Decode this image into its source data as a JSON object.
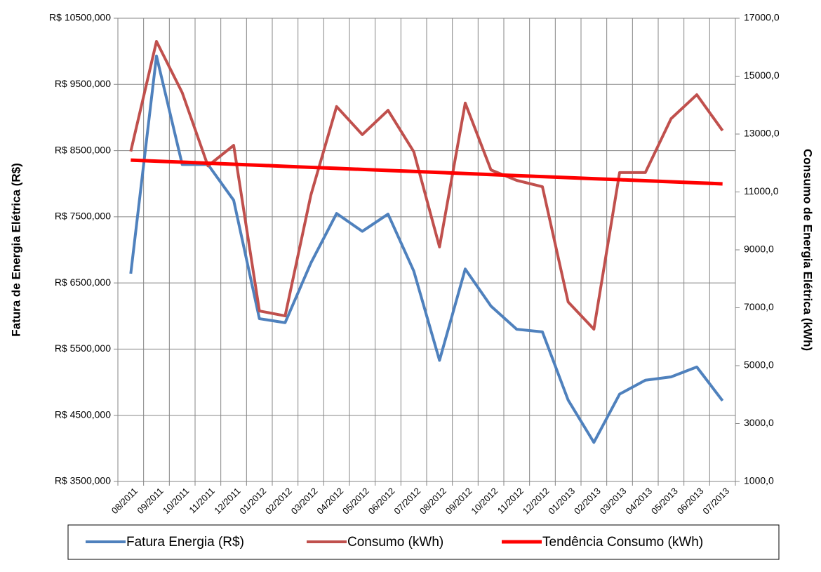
{
  "chart_data": {
    "type": "line",
    "y_label": "Fatura de Energia Elétrica (R$)",
    "y2_label": "Consumo de Energia Elétrica (kWh)",
    "categories": [
      "08/2011",
      "09/2011",
      "10/2011",
      "11/2011",
      "12/2011",
      "01/2012",
      "02/2012",
      "03/2012",
      "04/2012",
      "05/2012",
      "06/2012",
      "07/2012",
      "08/2012",
      "09/2012",
      "10/2012",
      "11/2012",
      "12/2012",
      "01/2013",
      "02/2013",
      "03/2013",
      "04/2013",
      "05/2013",
      "06/2013",
      "07/2013"
    ],
    "series": [
      {
        "name": "Fatura Energia (R$)",
        "color": "#4f81bd",
        "values": [
          6640,
          9930,
          8290,
          8290,
          7750,
          5960,
          5900,
          6800,
          7550,
          7280,
          7540,
          6680,
          5330,
          6710,
          6150,
          5800,
          5760,
          4730,
          4090,
          4820,
          5030,
          5080,
          5230,
          4720
        ]
      },
      {
        "name": "Consumo (kWh)",
        "color": "#c0504d",
        "axis": "y2",
        "values": [
          12400,
          16200,
          14430,
          11900,
          12610,
          6890,
          6720,
          10890,
          13950,
          12980,
          13820,
          12390,
          9100,
          14070,
          11760,
          11400,
          11180,
          7200,
          6260,
          11670,
          11670,
          13530,
          14360,
          13120
        ]
      },
      {
        "name": "Tendência Consumo (kWh)",
        "color": "#ff0000",
        "axis": "y2",
        "values": [
          12100,
          12064,
          12029,
          11993,
          11957,
          11922,
          11886,
          11850,
          11815,
          11779,
          11743,
          11708,
          11672,
          11637,
          11601,
          11565,
          11530,
          11494,
          11458,
          11423,
          11387,
          11351,
          11316,
          11280
        ]
      }
    ],
    "ylim": [
      3500,
      10500
    ],
    "yticks": [
      {
        "value": 3500,
        "label": "R$ 3500,000"
      },
      {
        "value": 4500,
        "label": "R$ 4500,000"
      },
      {
        "value": 5500,
        "label": "R$ 5500,000"
      },
      {
        "value": 6500,
        "label": "R$ 6500,000"
      },
      {
        "value": 7500,
        "label": "R$ 7500,000"
      },
      {
        "value": 8500,
        "label": "R$ 8500,000"
      },
      {
        "value": 9500,
        "label": "R$ 9500,000"
      },
      {
        "value": 10500,
        "label": "R$ 10500,000"
      }
    ],
    "y2lim": [
      1000,
      17000
    ],
    "y2ticks": [
      {
        "value": 1000,
        "label": "1000,0"
      },
      {
        "value": 3000,
        "label": "3000,0"
      },
      {
        "value": 5000,
        "label": "5000,0"
      },
      {
        "value": 7000,
        "label": "7000,0"
      },
      {
        "value": 9000,
        "label": "9000,0"
      },
      {
        "value": 11000,
        "label": "11000,0"
      },
      {
        "value": 13000,
        "label": "13000,0"
      },
      {
        "value": 15000,
        "label": "15000,0"
      },
      {
        "value": 17000,
        "label": "17000,0"
      }
    ],
    "grid": true,
    "legend": "bottom"
  }
}
